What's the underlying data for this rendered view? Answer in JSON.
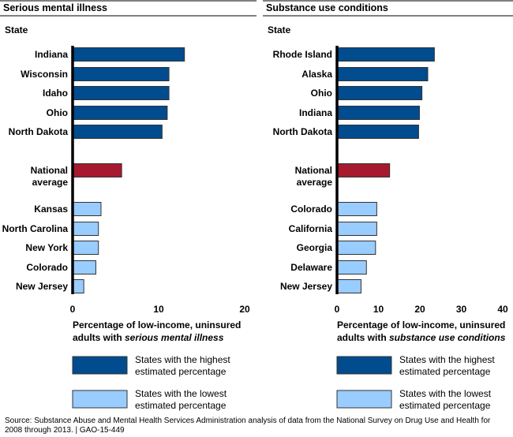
{
  "chart_data": [
    {
      "type": "bar",
      "orientation": "horizontal",
      "title": "Serious mental illness",
      "ylabel": "State",
      "xlabel_prefix": "Percentage of low-income, uninsured",
      "xlabel_line2": "adults with ",
      "xlabel_emph": "serious mental illness",
      "xlim": [
        0,
        20
      ],
      "ticks": [
        "0",
        "10",
        "20"
      ],
      "tick_values": [
        0,
        10,
        20
      ],
      "categories": [
        "Indiana",
        "Wisconsin",
        "Idaho",
        "Ohio",
        "North Dakota",
        "National average",
        "Kansas",
        "North Carolina",
        "New York",
        "Colorado",
        "New Jersey"
      ],
      "values": [
        13.0,
        11.2,
        11.2,
        11.0,
        10.4,
        5.7,
        3.3,
        3.0,
        3.0,
        2.7,
        1.3
      ],
      "groups": [
        "high",
        "high",
        "high",
        "high",
        "high",
        "national",
        "low",
        "low",
        "low",
        "low",
        "low"
      ]
    },
    {
      "type": "bar",
      "orientation": "horizontal",
      "title": "Substance use conditions",
      "ylabel": "State",
      "xlabel_prefix": "Percentage of low-income, uninsured",
      "xlabel_line2": "adults with ",
      "xlabel_emph": "substance use conditions",
      "xlim": [
        0,
        40
      ],
      "ticks": [
        "0",
        "10",
        "20",
        "30",
        "40"
      ],
      "tick_values": [
        0,
        10,
        20,
        30,
        40
      ],
      "categories": [
        "Rhode Island",
        "Alaska",
        "Ohio",
        "Indiana",
        "North Dakota",
        "National average",
        "Colorado",
        "California",
        "Georgia",
        "Delaware",
        "New Jersey"
      ],
      "values": [
        23.5,
        21.9,
        20.5,
        19.9,
        19.7,
        12.7,
        9.6,
        9.6,
        9.3,
        7.1,
        5.8
      ],
      "groups": [
        "high",
        "high",
        "high",
        "high",
        "high",
        "national",
        "low",
        "low",
        "low",
        "low",
        "low"
      ]
    }
  ],
  "legend": [
    {
      "group": "high",
      "line1": "States with the highest",
      "line2": "estimated percentage"
    },
    {
      "group": "low",
      "line1": "States with the lowest",
      "line2": "estimated percentage"
    }
  ],
  "colors": {
    "high": "#004C8E",
    "national": "#A6192E",
    "low": "#99CCFF"
  },
  "source": "Source: Substance Abuse and Mental Health Services Administration analysis of data from the National Survey on Drug Use and Health for 2008 through 2013.  |  GAO-15-449"
}
